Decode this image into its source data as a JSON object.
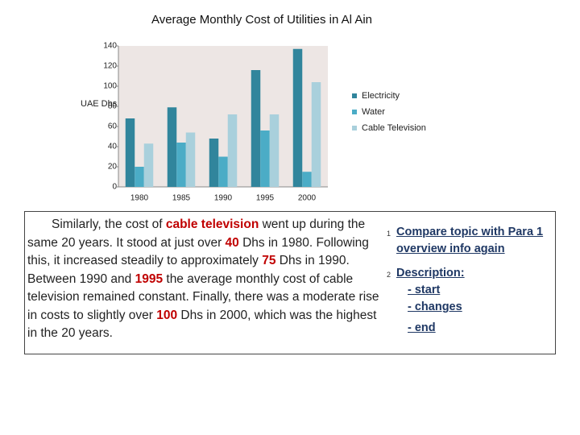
{
  "chart_data": {
    "type": "bar",
    "title": "Average Monthly Cost of Utilities in Al Ain",
    "y_label": "UAE Dhs",
    "categories": [
      "1980",
      "1985",
      "1990",
      "1995",
      "2000"
    ],
    "series": [
      {
        "name": "Electricity",
        "color": "#31859c",
        "values": [
          68,
          79,
          48,
          116,
          137
        ]
      },
      {
        "name": "Water",
        "color": "#4bacc6",
        "values": [
          20,
          44,
          30,
          56,
          15
        ]
      },
      {
        "name": "Cable Television",
        "color": "#a9d0dc",
        "values": [
          43,
          54,
          72,
          72,
          104
        ]
      }
    ],
    "ylim": [
      0,
      140
    ],
    "yticks": [
      0,
      20,
      40,
      60,
      80,
      100,
      120,
      140
    ],
    "grid": false,
    "legend": "right"
  },
  "paragraph": [
    {
      "text": "Similarly, the cost of ",
      "color": "#222222"
    },
    {
      "text": "cable television",
      "color": "#c00000"
    },
    {
      "text": " went up during the same 20 years. It stood at just over ",
      "color": "#222222"
    },
    {
      "text": "40",
      "color": "#c00000"
    },
    {
      "text": " Dhs in 1980. Following this, it increased steadily to approximately ",
      "color": "#222222"
    },
    {
      "text": "75",
      "color": "#c00000"
    },
    {
      "text": " Dhs in 1990. Between 1990 and ",
      "color": "#222222"
    },
    {
      "text": "1995",
      "color": "#c00000"
    },
    {
      "text": " the average monthly cost of cable television remained constant.  Finally, there was a moderate rise in costs to slightly over ",
      "color": "#222222"
    },
    {
      "text": "100",
      "color": "#c00000"
    },
    {
      "text": " Dhs in 2000, which was the highest in the 20 years.",
      "color": "#222222"
    }
  ],
  "notes": [
    {
      "number": "1",
      "lines": [
        "Compare topic with Para 1",
        "overview info again"
      ]
    },
    {
      "number": "2",
      "lines": [
        "Description:",
        "- start",
        "- changes",
        "- end"
      ]
    }
  ]
}
